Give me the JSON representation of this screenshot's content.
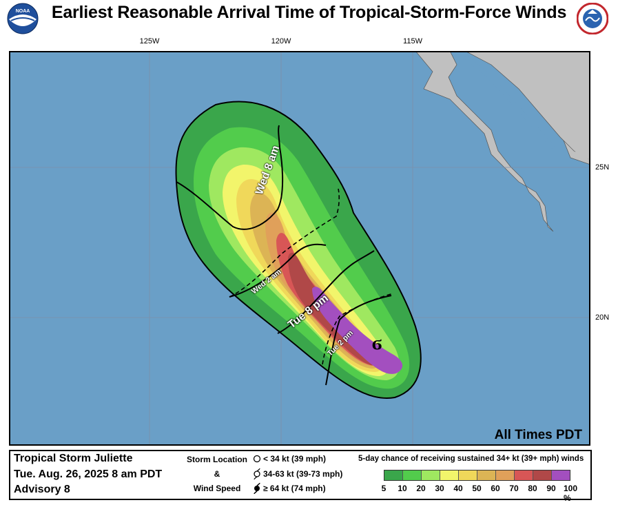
{
  "title": "Earliest Reasonable Arrival Time of Tropical-Storm-Force Winds",
  "logos": {
    "left": "noaa-logo",
    "right": "nws-logo"
  },
  "axes": {
    "longitude_labels": [
      "125W",
      "120W",
      "115W"
    ],
    "latitude_labels": [
      "25N",
      "20N"
    ]
  },
  "map": {
    "ocean_color": "#6a9fc7",
    "land_color": "#c0c0c0",
    "time_labels": [
      {
        "text": "Wed 8 am",
        "style": "solid"
      },
      {
        "text": "Tue 8 pm",
        "style": "solid"
      },
      {
        "text": "Wed 2 am",
        "style": "dashed"
      },
      {
        "text": "Tue 2 pm",
        "style": "dashed"
      }
    ],
    "storm_symbol": "tropical-storm-icon"
  },
  "timezone_note": "All Times PDT",
  "legend": {
    "storm_name": "Tropical Storm Juliette",
    "advisory_date": "Tue. Aug. 26, 2025  8 am PDT",
    "advisory_number": "Advisory 8",
    "location_title": "Storm Location",
    "amp": "&",
    "wind_title": "Wind Speed",
    "symbols": [
      {
        "icon": "depression-icon",
        "label": "< 34 kt (39 mph)"
      },
      {
        "icon": "tropical-storm-icon",
        "label": "34-63 kt (39-73 mph)"
      },
      {
        "icon": "hurricane-icon",
        "label": "≥ 64 kt (74 mph)"
      }
    ],
    "prob_title": "5-day chance of receiving sustained 34+ kt (39+ mph) winds",
    "scale": [
      {
        "label": "5",
        "color": "#3aa64b"
      },
      {
        "label": "10",
        "color": "#52cc4c"
      },
      {
        "label": "20",
        "color": "#9fe860"
      },
      {
        "label": "30",
        "color": "#f2f56b"
      },
      {
        "label": "40",
        "color": "#f0d85a"
      },
      {
        "label": "50",
        "color": "#dcb455"
      },
      {
        "label": "60",
        "color": "#e0a05a"
      },
      {
        "label": "70",
        "color": "#d85656"
      },
      {
        "label": "80",
        "color": "#b04848"
      },
      {
        "label": "90",
        "color": "#a34fbf"
      },
      {
        "label": "100 %",
        "color": ""
      }
    ]
  }
}
